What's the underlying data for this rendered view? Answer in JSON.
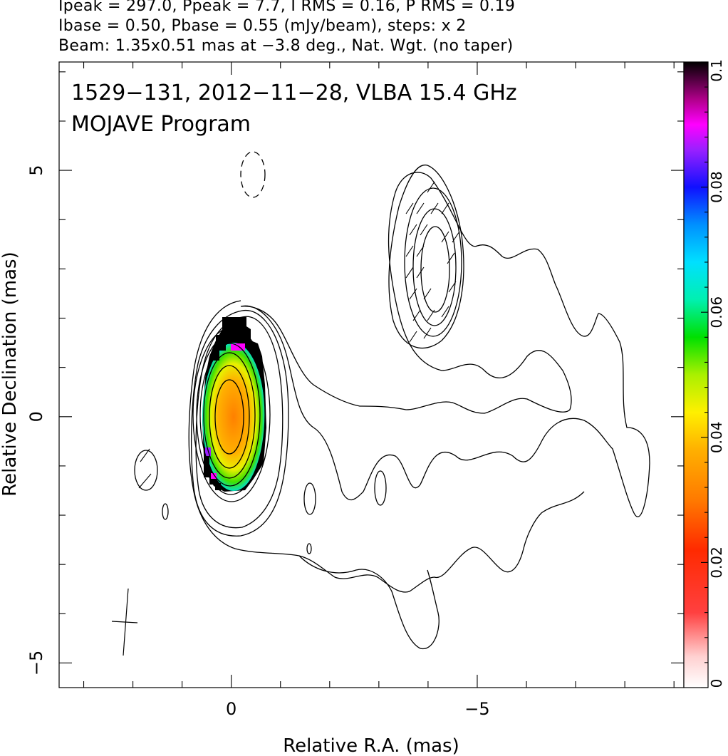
{
  "header": {
    "line1": "Ipeak = 297.0, Ppeak = 7.7, I RMS = 0.16, P RMS = 0.19",
    "line2": "Ibase = 0.50, Pbase = 0.55 (mJy/beam), steps: x 2",
    "line3": "Beam: 1.35x0.51 mas at −3.8 deg., Nat. Wgt. (no taper)"
  },
  "chart_data": {
    "type": "heatmap",
    "title": "1529−131, 2012−11−28, VLBA 15.4 GHz",
    "subtitle": "MOJAVE Program",
    "xlabel": "Relative R.A. (mas)",
    "ylabel": "Relative Declination (mas)",
    "xlim": [
      3.5,
      -9.2
    ],
    "ylim": [
      -5.5,
      7.2
    ],
    "x_ticks": [
      0,
      -5
    ],
    "y_ticks": [
      5,
      0,
      -5
    ],
    "x_tick_labels": [
      "0",
      "−5"
    ],
    "y_tick_labels": [
      "5",
      "0",
      "−5"
    ],
    "colorbar": {
      "range": [
        0,
        0.1
      ],
      "ticks": [
        0,
        0.02,
        0.04,
        0.06,
        0.08,
        0.1
      ],
      "tick_labels": [
        "0",
        "0.02",
        "0.04",
        "0.06",
        "0.08",
        "0.1"
      ]
    },
    "intensity_peak_mJy_per_beam": 297.0,
    "polarization_peak_mJy_per_beam": 7.7,
    "intensity_rms": 0.16,
    "polarization_rms": 0.19,
    "intensity_base": 0.5,
    "polarization_base": 0.55,
    "contour_step_factor": 2,
    "beam": {
      "major_mas": 1.35,
      "minor_mas": 0.51,
      "pa_deg": -3.8,
      "weighting": "Nat. Wgt. (no taper)"
    },
    "core": {
      "x": 0,
      "y": 0,
      "contour_levels": 9
    },
    "jet_component": {
      "x": -4.2,
      "y": 3.0,
      "contour_levels": 4
    },
    "grid": false
  }
}
